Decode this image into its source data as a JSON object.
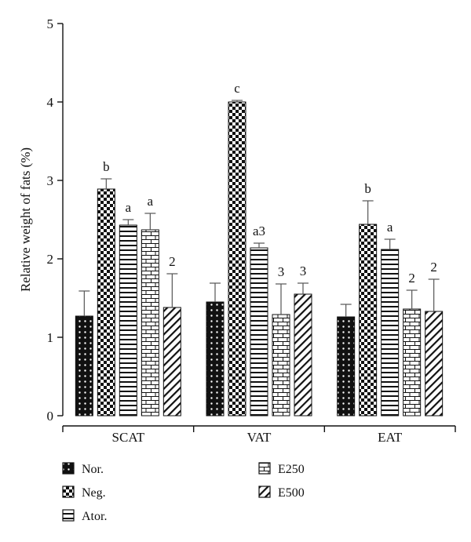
{
  "chart_data": {
    "type": "bar",
    "title": "",
    "xlabel": "",
    "ylabel": "Relative weight of fats (%)",
    "ylim": [
      0,
      5
    ],
    "yticks": [
      "0",
      "1",
      "2",
      "3",
      "4",
      "5"
    ],
    "categories": [
      "SCAT",
      "VAT",
      "EAT"
    ],
    "grid": false,
    "legend_position": "bottom",
    "series": [
      {
        "name": "Nor.",
        "pattern": "dots",
        "values": [
          1.27,
          1.45,
          1.26
        ],
        "errors": [
          0.32,
          0.24,
          0.16
        ],
        "labels": [
          "",
          "",
          ""
        ]
      },
      {
        "name": "Neg.",
        "pattern": "checkerboard",
        "values": [
          2.89,
          4.0,
          2.44
        ],
        "errors": [
          0.13,
          0.02,
          0.3
        ],
        "labels": [
          "b",
          "c",
          "b"
        ]
      },
      {
        "name": "Ator.",
        "pattern": "horizontal",
        "values": [
          2.43,
          2.14,
          2.12
        ],
        "errors": [
          0.07,
          0.06,
          0.13
        ],
        "labels": [
          "a",
          "a3",
          "a"
        ]
      },
      {
        "name": "E250",
        "pattern": "brick",
        "values": [
          2.37,
          1.29,
          1.36
        ],
        "errors": [
          0.21,
          0.39,
          0.24
        ],
        "labels": [
          "a",
          "3",
          "2"
        ]
      },
      {
        "name": "E500",
        "pattern": "diagonal",
        "values": [
          1.38,
          1.55,
          1.33
        ],
        "errors": [
          0.43,
          0.14,
          0.41
        ],
        "labels": [
          "2",
          "3",
          "2"
        ]
      }
    ]
  }
}
